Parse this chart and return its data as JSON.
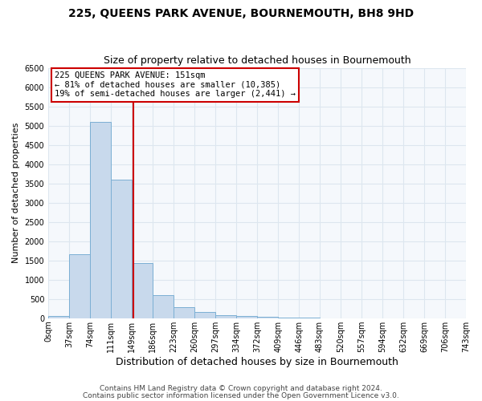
{
  "title1": "225, QUEENS PARK AVENUE, BOURNEMOUTH, BH8 9HD",
  "title2": "Size of property relative to detached houses in Bournemouth",
  "xlabel": "Distribution of detached houses by size in Bournemouth",
  "ylabel": "Number of detached properties",
  "bin_edges": [
    0,
    37,
    74,
    111,
    148,
    185,
    222,
    259,
    296,
    333,
    370,
    407,
    444,
    481,
    518,
    555,
    592,
    629,
    666,
    703,
    740
  ],
  "bin_heights": [
    50,
    1650,
    5100,
    3600,
    1420,
    590,
    290,
    150,
    80,
    50,
    30,
    10,
    5,
    3,
    2,
    1,
    1,
    0,
    0,
    0
  ],
  "bar_color": "#c8d9ec",
  "bar_edge_color": "#7bafd4",
  "red_line_x": 151,
  "annotation_text": "225 QUEENS PARK AVENUE: 151sqm\n← 81% of detached houses are smaller (10,385)\n19% of semi-detached houses are larger (2,441) →",
  "annotation_box_color": "#ffffff",
  "annotation_border_color": "#cc0000",
  "ylim": [
    0,
    6500
  ],
  "yticks": [
    0,
    500,
    1000,
    1500,
    2000,
    2500,
    3000,
    3500,
    4000,
    4500,
    5000,
    5500,
    6000,
    6500
  ],
  "tick_labels": [
    "0sqm",
    "37sqm",
    "74sqm",
    "111sqm",
    "149sqm",
    "186sqm",
    "223sqm",
    "260sqm",
    "297sqm",
    "334sqm",
    "372sqm",
    "409sqm",
    "446sqm",
    "483sqm",
    "520sqm",
    "557sqm",
    "594sqm",
    "632sqm",
    "669sqm",
    "706sqm",
    "743sqm"
  ],
  "footer1": "Contains HM Land Registry data © Crown copyright and database right 2024.",
  "footer2": "Contains public sector information licensed under the Open Government Licence v3.0.",
  "background_color": "#ffffff",
  "plot_bg_color": "#f5f8fc",
  "grid_color": "#dde6ef",
  "title1_fontsize": 10,
  "title2_fontsize": 9,
  "xlabel_fontsize": 9,
  "ylabel_fontsize": 8,
  "tick_fontsize": 7,
  "annotation_fontsize": 7.5,
  "footer_fontsize": 6.5
}
